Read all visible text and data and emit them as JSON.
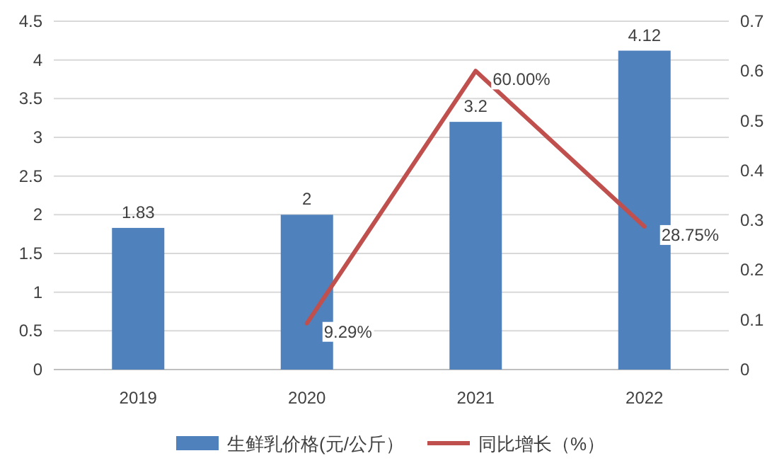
{
  "chart_data": {
    "type": "bar",
    "categories": [
      "2019",
      "2020",
      "2021",
      "2022"
    ],
    "series": [
      {
        "name": "生鲜乳价格(元/公斤）",
        "color": "#4f81bd",
        "values": [
          1.83,
          2,
          3.2,
          4.12
        ],
        "value_labels": [
          "1.83",
          "2",
          "3.2",
          "4.12"
        ]
      },
      {
        "name": "同比增长（%）",
        "type": "line",
        "axis": "y2",
        "color": "#c0504d",
        "values": [
          null,
          0.0929,
          0.6,
          0.2875
        ],
        "value_labels": [
          null,
          "9.29%",
          "60.00%",
          "28.75%"
        ]
      }
    ],
    "ylim": [
      0,
      4.5
    ],
    "yticks": [
      0,
      0.5,
      1,
      1.5,
      2,
      2.5,
      3,
      3.5,
      4,
      4.5
    ],
    "y2lim": [
      0,
      0.7
    ],
    "y2ticks": [
      0,
      0.1,
      0.2,
      0.3,
      0.4,
      0.5,
      0.6,
      0.7
    ],
    "grid": "y",
    "legend": "bottom"
  }
}
